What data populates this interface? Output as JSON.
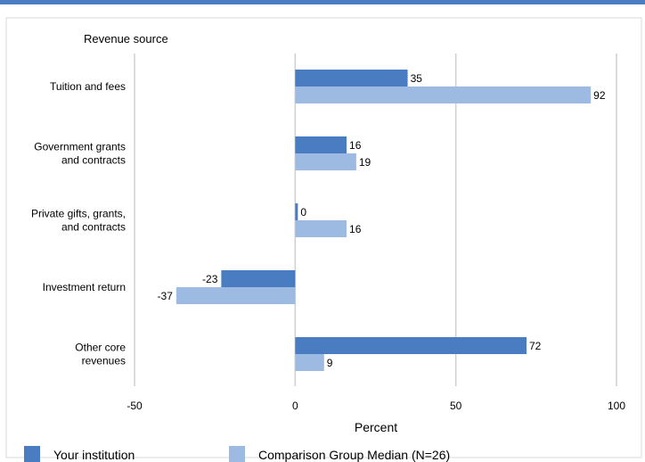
{
  "chart_data": {
    "type": "bar",
    "orientation": "horizontal",
    "yaxis_title": "Revenue source",
    "xlabel": "Percent",
    "xlim": [
      -50,
      100
    ],
    "xticks": [
      -50,
      0,
      50,
      100
    ],
    "grid": true,
    "legend_position": "bottom",
    "categories": [
      [
        "Tuition and fees"
      ],
      [
        "Government grants",
        "and contracts"
      ],
      [
        "Private gifts, grants,",
        "and contracts"
      ],
      [
        "Investment return"
      ],
      [
        "Other core",
        "revenues"
      ]
    ],
    "series": [
      {
        "name": "Your institution",
        "color": "#4a7cc2",
        "values": [
          35,
          16,
          0,
          -23,
          72
        ]
      },
      {
        "name": "Comparison Group Median (N=26)",
        "color": "#9dbbe2",
        "values": [
          92,
          19,
          16,
          -37,
          9
        ]
      }
    ],
    "header_bar_color": "#4a7cc2"
  }
}
